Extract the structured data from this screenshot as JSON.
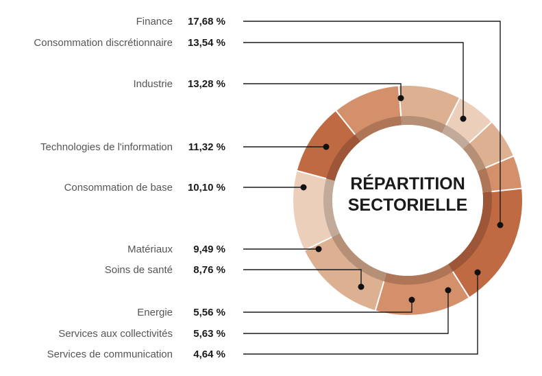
{
  "chart_data": {
    "type": "pie",
    "title_lines": [
      "RÉPARTITION",
      "SECTORIELLE"
    ],
    "items": [
      {
        "name": "Finance",
        "value_label": "17,68 %",
        "value": 17.68,
        "color": "#c06a44"
      },
      {
        "name": "Consommation discrétionnaire",
        "value_label": "13,54 %",
        "value": 13.54,
        "color": "#d4906a"
      },
      {
        "name": "Industrie",
        "value_label": "13,28 %",
        "value": 13.28,
        "color": "#ddb091"
      },
      {
        "name": "Technologies de l'information",
        "value_label": "11,32 %",
        "value": 11.32,
        "color": "#ebcfbb"
      },
      {
        "name": "Consommation de base",
        "value_label": "10,10 %",
        "value": 10.1,
        "color": "#c06a44"
      },
      {
        "name": "Matériaux",
        "value_label": "9,49 %",
        "value": 9.49,
        "color": "#d4906a"
      },
      {
        "name": "Soins de santé",
        "value_label": "8,76 %",
        "value": 8.76,
        "color": "#ddb091"
      },
      {
        "name": "Energie",
        "value_label": "5,56 %",
        "value": 5.56,
        "color": "#ebcfbb"
      },
      {
        "name": "Services aux collectivités",
        "value_label": "5,63 %",
        "value": 5.63,
        "color": "#ddb091"
      },
      {
        "name": "Services de communication",
        "value_label": "4,64 %",
        "value": 4.64,
        "color": "#d4906a"
      }
    ]
  }
}
